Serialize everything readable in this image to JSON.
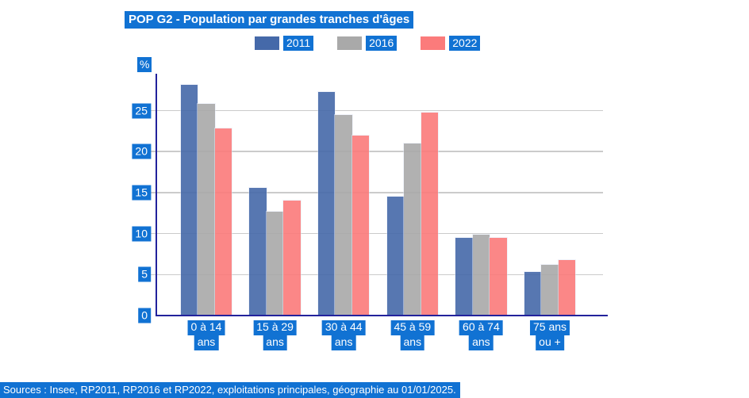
{
  "title_block": {
    "label": "POP G2 - Population par grandes tranches d'âges"
  },
  "colors": {
    "highlight_blue": "#1172d3",
    "bar_2011": "#4569a9",
    "bar_2016": "#a9a9a9",
    "bar_2022": "#fb7b7b",
    "axis_navy": "#22229c",
    "gridline_gray": "#cbcbcb",
    "text_on_blue": "#ffffff"
  },
  "y_axis": {
    "unit_label": "%",
    "ticks": [
      0,
      5,
      10,
      15,
      20,
      25
    ]
  },
  "source": "Sources : Insee, RP2011, RP2016 et RP2022, exploitations principales, géographie au 01/01/2025.",
  "chart_data": {
    "type": "bar",
    "title": "POP G2 - Population par grandes tranches d'âges",
    "categories": [
      "0 à 14 ans",
      "15 à 29 ans",
      "30 à 44 ans",
      "45 à 59 ans",
      "60 à 74 ans",
      "75 ans ou +"
    ],
    "category_display_lines": [
      [
        "0 à 14",
        "ans"
      ],
      [
        "15 à 29",
        "ans"
      ],
      [
        "30 à 44",
        "ans"
      ],
      [
        "45 à 59",
        "ans"
      ],
      [
        "60 à 74",
        "ans"
      ],
      [
        "75 ans",
        "ou +"
      ]
    ],
    "series": [
      {
        "name": "2011",
        "color_key": "bar_2011",
        "values": [
          28.1,
          15.6,
          27.3,
          14.5,
          9.5,
          5.3
        ]
      },
      {
        "name": "2016",
        "color_key": "bar_2016",
        "values": [
          25.8,
          12.7,
          24.5,
          21.0,
          9.9,
          6.2
        ]
      },
      {
        "name": "2022",
        "color_key": "bar_2022",
        "values": [
          22.8,
          14.0,
          22.0,
          24.8,
          9.5,
          6.8
        ]
      }
    ],
    "xlabel": "",
    "ylabel": "%",
    "ylim": [
      0,
      29.5
    ],
    "grid": true,
    "legend_position": "top"
  }
}
